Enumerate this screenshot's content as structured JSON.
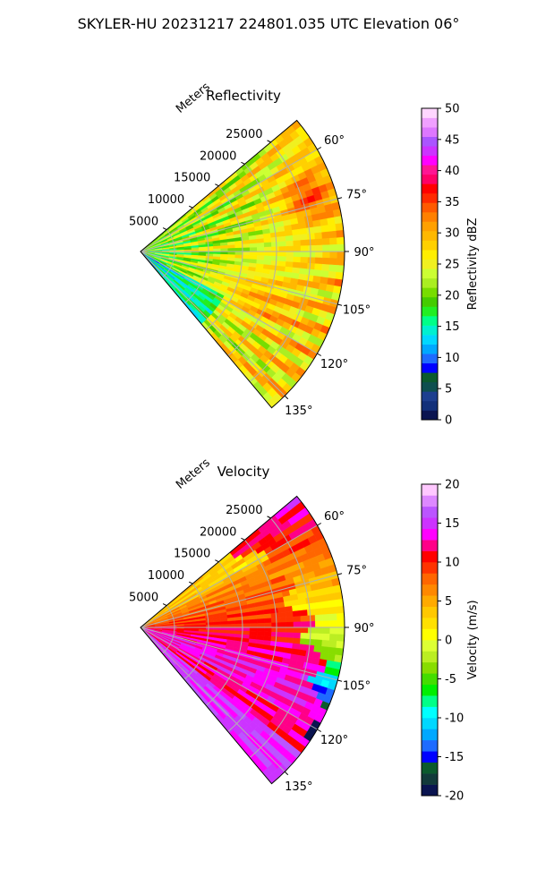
{
  "title": "SKYLER-HU  20231217  224801.035 UTC Elevation 06°",
  "colors": {
    "reflectivity": [
      "#0a1450",
      "#12307a",
      "#1d3f8f",
      "#0e4f4f",
      "#0b5a2d",
      "#0000ff",
      "#1e6bff",
      "#00a8ff",
      "#00d8ff",
      "#00f0d0",
      "#00ff88",
      "#22ee22",
      "#44cc00",
      "#77dd00",
      "#aaee22",
      "#ccff33",
      "#f0f020",
      "#ffee00",
      "#ffd000",
      "#ffb800",
      "#ffa000",
      "#ff8000",
      "#ff5a00",
      "#ff2a00",
      "#ff0000",
      "#ff0066",
      "#ff1493",
      "#ff00ff",
      "#cc33ff",
      "#aa55ff",
      "#dd77ff",
      "#f0a0ff",
      "#ffd6ff"
    ],
    "velocity": [
      "#0a1450",
      "#123a3a",
      "#0b5a2d",
      "#0000ff",
      "#1e6bff",
      "#00a8ff",
      "#00d8ff",
      "#00ffff",
      "#00ff88",
      "#00ee00",
      "#44dd00",
      "#88dd00",
      "#bbee22",
      "#ddff33",
      "#ffff00",
      "#ffe000",
      "#ffc800",
      "#ffaa00",
      "#ff8800",
      "#ff6600",
      "#ff3300",
      "#ff0000",
      "#ff0088",
      "#ff00ff",
      "#cc33ff",
      "#bb55ff",
      "#dd88ff",
      "#ffc8ff"
    ]
  },
  "chart_data": [
    {
      "type": "heatmap",
      "projection": "polar-sector",
      "title": "Reflectivity",
      "radial_axis_label": "Meters",
      "radial_ticks": [
        5000,
        10000,
        15000,
        20000,
        25000
      ],
      "radial_tick_labels": [
        "5000",
        "10000",
        "15000",
        "20000",
        "25000"
      ],
      "r_range_m": [
        0,
        30000
      ],
      "azimuth_range_deg": [
        50,
        140
      ],
      "azimuth_ticks": [
        60,
        75,
        90,
        105,
        120,
        135
      ],
      "azimuth_tick_labels": [
        "60°",
        "75°",
        "90°",
        "105°",
        "120°",
        "135°"
      ],
      "colorbar": {
        "label": "Reflectivity dBZ",
        "range": [
          0,
          50
        ],
        "ticks": [
          0,
          5,
          10,
          15,
          20,
          25,
          30,
          35,
          40,
          45,
          50
        ],
        "tick_labels": [
          "0",
          "5",
          "10",
          "15",
          "20",
          "25",
          "30",
          "35",
          "40",
          "45",
          "50"
        ]
      },
      "grid": true
    },
    {
      "type": "heatmap",
      "projection": "polar-sector",
      "title": "Velocity",
      "radial_axis_label": "Meters",
      "radial_ticks": [
        5000,
        10000,
        15000,
        20000,
        25000
      ],
      "radial_tick_labels": [
        "5000",
        "10000",
        "15000",
        "20000",
        "25000"
      ],
      "r_range_m": [
        0,
        30000
      ],
      "azimuth_range_deg": [
        50,
        140
      ],
      "azimuth_ticks": [
        60,
        75,
        90,
        105,
        120,
        135
      ],
      "azimuth_tick_labels": [
        "60°",
        "75°",
        "90°",
        "105°",
        "120°",
        "135°"
      ],
      "colorbar": {
        "label": "Velocity (m/s)",
        "range": [
          -20,
          20
        ],
        "ticks": [
          -20,
          -15,
          -10,
          -5,
          0,
          5,
          10,
          15,
          20
        ],
        "tick_labels": [
          "-20",
          "-15",
          "-10",
          "-5",
          "0",
          "5",
          "10",
          "15",
          "20"
        ]
      },
      "grid": true
    }
  ]
}
